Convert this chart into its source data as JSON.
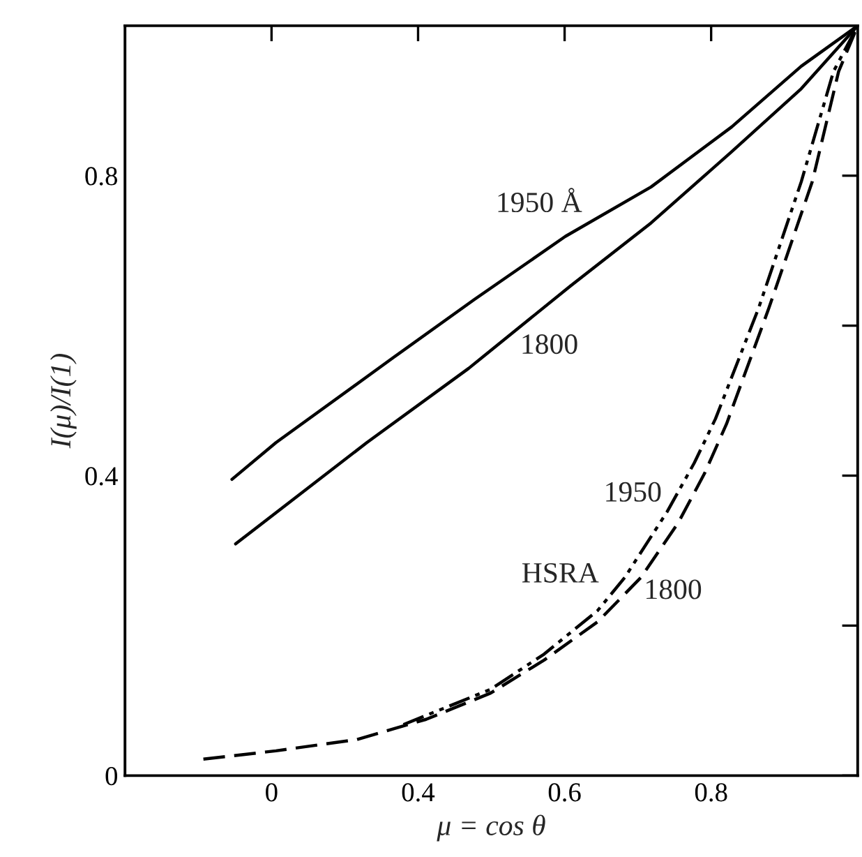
{
  "chart_data": {
    "type": "line",
    "xlabel": "μ = cos θ",
    "ylabel": "I(μ)/I(1)",
    "xlim": [
      0,
      1.0
    ],
    "ylim": [
      0,
      1.0
    ],
    "xticks": [
      {
        "value": 0.2,
        "label": "0"
      },
      0.4,
      0.6,
      0.8
    ],
    "yticks": [
      0,
      {
        "value": 0.2,
        "label": null
      },
      0.4,
      {
        "value": 0.6,
        "label": null
      },
      0.8
    ],
    "grid": false,
    "marker": "none",
    "series": [
      {
        "name": "1950 Å",
        "color": "#000000",
        "line_style": "solid",
        "x": [
          0.146,
          0.206,
          0.367,
          0.477,
          0.601,
          0.718,
          0.828,
          0.923,
          1.0
        ],
        "values": [
          0.395,
          0.444,
          0.558,
          0.635,
          0.719,
          0.785,
          0.865,
          0.946,
          1.0
        ]
      },
      {
        "name": "1800",
        "color": "#000000",
        "line_style": "solid",
        "x": [
          0.151,
          0.33,
          0.469,
          0.608,
          0.718,
          0.828,
          0.923,
          1.0
        ],
        "values": [
          0.309,
          0.444,
          0.543,
          0.653,
          0.737,
          0.832,
          0.916,
          1.0
        ]
      },
      {
        "name": "1800",
        "color": "#000000",
        "line_style": "dashed",
        "x": [
          0.107,
          0.206,
          0.316,
          0.411,
          0.499,
          0.572,
          0.645,
          0.704,
          0.755,
          0.791,
          0.821,
          0.879,
          0.938,
          0.974,
          1.0
        ],
        "values": [
          0.022,
          0.033,
          0.048,
          0.075,
          0.11,
          0.154,
          0.205,
          0.264,
          0.337,
          0.403,
          0.469,
          0.624,
          0.792,
          0.939,
          1.0
        ]
      },
      {
        "name": "1950",
        "color": "#000000",
        "line_style": "dashdotdot",
        "x": [
          0.38,
          0.499,
          0.572,
          0.645,
          0.682,
          0.74,
          0.777,
          0.806,
          0.865,
          0.923,
          0.967,
          1.0
        ],
        "values": [
          0.068,
          0.115,
          0.162,
          0.22,
          0.264,
          0.352,
          0.417,
          0.476,
          0.624,
          0.792,
          0.939,
          1.0
        ]
      }
    ],
    "annotations": [
      "HSRA"
    ]
  }
}
